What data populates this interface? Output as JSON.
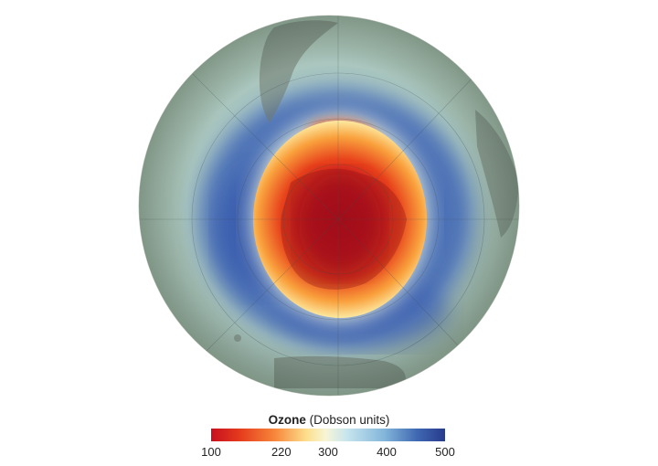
{
  "legend": {
    "title_bold": "Ozone",
    "title_rest": "(Dobson units)",
    "ticks": [
      "100",
      "220",
      "300",
      "400",
      "500"
    ],
    "min": 100,
    "max": 500
  },
  "colors": {
    "low": "#c8101f",
    "mid": "#f7f5d6",
    "high": "#283a8d",
    "land": "#6f776b"
  }
}
